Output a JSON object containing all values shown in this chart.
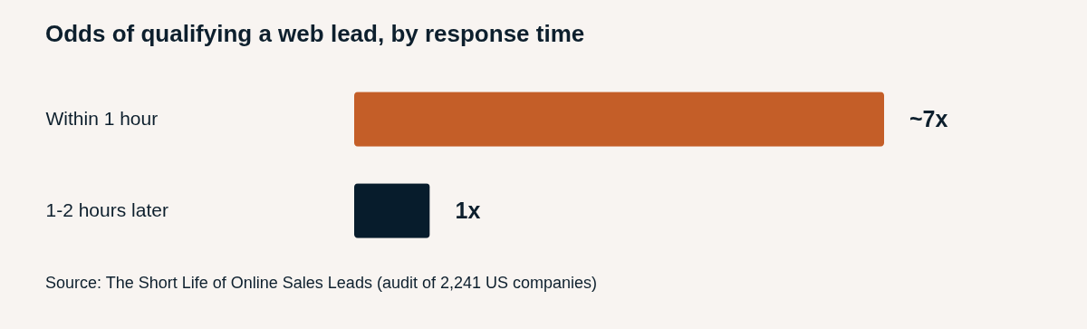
{
  "chart_data": {
    "type": "bar",
    "orientation": "horizontal",
    "title": "Odds of qualifying a web lead, by response time",
    "categories": [
      "Within 1 hour",
      "1-2 hours later"
    ],
    "values": [
      7,
      1
    ],
    "value_labels": [
      "~7x",
      "1x"
    ],
    "colors": [
      "#c45e28",
      "#071c2c"
    ],
    "annotations": [
      "Source: The Short Life of Online Sales Leads (audit of 2,241 US companies)"
    ]
  }
}
